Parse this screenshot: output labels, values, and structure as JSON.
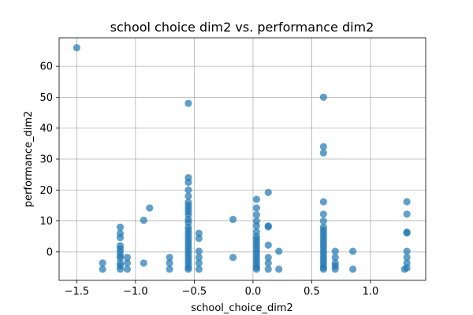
{
  "chart_data": {
    "type": "scatter",
    "title": "school choice dim2 vs. performance dim2",
    "xlabel": "school_choice_dim2",
    "ylabel": "performance_dim2",
    "xlim": [
      -1.65,
      1.47
    ],
    "ylim": [
      -9.2,
      69.2
    ],
    "x_ticks": [
      -1.5,
      -1.0,
      -0.5,
      0.0,
      0.5,
      1.0
    ],
    "x_tick_labels": [
      "−1.5",
      "−1.0",
      "−0.5",
      "0.0",
      "0.5",
      "1.0"
    ],
    "y_ticks": [
      0,
      10,
      20,
      30,
      40,
      50,
      60
    ],
    "y_tick_labels": [
      "0",
      "10",
      "20",
      "30",
      "40",
      "50",
      "60"
    ],
    "grid": true,
    "marker_color": "#1f77b4",
    "marker_alpha": 0.7,
    "points": [
      {
        "x": -1.5,
        "y": 66
      },
      {
        "x": -1.28,
        "y": -3.6
      },
      {
        "x": -1.28,
        "y": -5.6
      },
      {
        "x": -1.13,
        "y": 8
      },
      {
        "x": -1.13,
        "y": 6
      },
      {
        "x": -1.13,
        "y": 4.6
      },
      {
        "x": -1.13,
        "y": 2
      },
      {
        "x": -1.13,
        "y": 1
      },
      {
        "x": -1.13,
        "y": 0
      },
      {
        "x": -1.13,
        "y": -1.2
      },
      {
        "x": -1.13,
        "y": -2
      },
      {
        "x": -1.13,
        "y": -3.6
      },
      {
        "x": -1.13,
        "y": -4.6
      },
      {
        "x": -1.13,
        "y": -5.6
      },
      {
        "x": -1.07,
        "y": -1.8
      },
      {
        "x": -1.07,
        "y": -3.6
      },
      {
        "x": -1.07,
        "y": -5.6
      },
      {
        "x": -0.93,
        "y": 10.2
      },
      {
        "x": -0.93,
        "y": -3.6
      },
      {
        "x": -0.88,
        "y": 14.2
      },
      {
        "x": -0.71,
        "y": -1.8
      },
      {
        "x": -0.71,
        "y": -3.6
      },
      {
        "x": -0.71,
        "y": -5.6
      },
      {
        "x": -0.55,
        "y": 48
      },
      {
        "x": -0.55,
        "y": 24
      },
      {
        "x": -0.55,
        "y": 22.5
      },
      {
        "x": -0.55,
        "y": 20
      },
      {
        "x": -0.55,
        "y": 18
      },
      {
        "x": -0.55,
        "y": 16
      },
      {
        "x": -0.55,
        "y": 15
      },
      {
        "x": -0.55,
        "y": 14
      },
      {
        "x": -0.55,
        "y": 13
      },
      {
        "x": -0.55,
        "y": 12
      },
      {
        "x": -0.55,
        "y": 10.5
      },
      {
        "x": -0.55,
        "y": 9.5
      },
      {
        "x": -0.55,
        "y": 8
      },
      {
        "x": -0.55,
        "y": 7
      },
      {
        "x": -0.55,
        "y": 6
      },
      {
        "x": -0.55,
        "y": 5
      },
      {
        "x": -0.55,
        "y": 4
      },
      {
        "x": -0.55,
        "y": 3
      },
      {
        "x": -0.55,
        "y": 2
      },
      {
        "x": -0.55,
        "y": 1
      },
      {
        "x": -0.55,
        "y": 0
      },
      {
        "x": -0.55,
        "y": -1
      },
      {
        "x": -0.55,
        "y": -2
      },
      {
        "x": -0.55,
        "y": -3
      },
      {
        "x": -0.55,
        "y": -4
      },
      {
        "x": -0.55,
        "y": -5
      },
      {
        "x": -0.55,
        "y": -5.6
      },
      {
        "x": -0.46,
        "y": 6
      },
      {
        "x": -0.46,
        "y": 4.4
      },
      {
        "x": -0.46,
        "y": 0.2
      },
      {
        "x": -0.46,
        "y": -1.8
      },
      {
        "x": -0.46,
        "y": -3.6
      },
      {
        "x": -0.46,
        "y": -5.6
      },
      {
        "x": -0.17,
        "y": 10.5
      },
      {
        "x": -0.17,
        "y": -1.8
      },
      {
        "x": 0.03,
        "y": 17
      },
      {
        "x": 0.03,
        "y": 14.2
      },
      {
        "x": 0.03,
        "y": 12
      },
      {
        "x": 0.03,
        "y": 10
      },
      {
        "x": 0.03,
        "y": 8.4
      },
      {
        "x": 0.03,
        "y": 6.5
      },
      {
        "x": 0.03,
        "y": 5
      },
      {
        "x": 0.03,
        "y": 4
      },
      {
        "x": 0.03,
        "y": 3
      },
      {
        "x": 0.03,
        "y": 2
      },
      {
        "x": 0.03,
        "y": 1
      },
      {
        "x": 0.03,
        "y": 0
      },
      {
        "x": 0.03,
        "y": -1
      },
      {
        "x": 0.03,
        "y": -2
      },
      {
        "x": 0.03,
        "y": -3
      },
      {
        "x": 0.03,
        "y": -4
      },
      {
        "x": 0.03,
        "y": -5
      },
      {
        "x": 0.03,
        "y": -5.6
      },
      {
        "x": 0.13,
        "y": 19.2
      },
      {
        "x": 0.13,
        "y": 8.4
      },
      {
        "x": 0.13,
        "y": 8.1
      },
      {
        "x": 0.13,
        "y": 2.2
      },
      {
        "x": 0.13,
        "y": -1.8
      },
      {
        "x": 0.13,
        "y": -3.6
      },
      {
        "x": 0.13,
        "y": -5.6
      },
      {
        "x": 0.22,
        "y": 0.2
      },
      {
        "x": 0.22,
        "y": -5.6
      },
      {
        "x": 0.6,
        "y": 50
      },
      {
        "x": 0.6,
        "y": 34
      },
      {
        "x": 0.6,
        "y": 32
      },
      {
        "x": 0.6,
        "y": 16.2
      },
      {
        "x": 0.6,
        "y": 12.2
      },
      {
        "x": 0.6,
        "y": 10
      },
      {
        "x": 0.6,
        "y": 8
      },
      {
        "x": 0.6,
        "y": 7
      },
      {
        "x": 0.6,
        "y": 6
      },
      {
        "x": 0.6,
        "y": 5
      },
      {
        "x": 0.6,
        "y": 4
      },
      {
        "x": 0.6,
        "y": 3
      },
      {
        "x": 0.6,
        "y": 2
      },
      {
        "x": 0.6,
        "y": 1
      },
      {
        "x": 0.6,
        "y": 0
      },
      {
        "x": 0.6,
        "y": -1
      },
      {
        "x": 0.6,
        "y": -2
      },
      {
        "x": 0.6,
        "y": -3
      },
      {
        "x": 0.6,
        "y": -4
      },
      {
        "x": 0.6,
        "y": -5
      },
      {
        "x": 0.6,
        "y": -5.6
      },
      {
        "x": 0.7,
        "y": 0.2
      },
      {
        "x": 0.7,
        "y": -1.8
      },
      {
        "x": 0.7,
        "y": -3.6
      },
      {
        "x": 0.7,
        "y": -4.6
      },
      {
        "x": 0.7,
        "y": -5.6
      },
      {
        "x": 0.85,
        "y": 0.2
      },
      {
        "x": 0.85,
        "y": -5.6
      },
      {
        "x": 1.29,
        "y": -5.6
      },
      {
        "x": 1.31,
        "y": 16.2
      },
      {
        "x": 1.31,
        "y": 12.2
      },
      {
        "x": 1.31,
        "y": 6.4
      },
      {
        "x": 1.31,
        "y": 6.1
      },
      {
        "x": 1.31,
        "y": 0.2
      },
      {
        "x": 1.31,
        "y": -1.8
      },
      {
        "x": 1.31,
        "y": -3.6
      },
      {
        "x": 1.31,
        "y": -5.2
      }
    ]
  }
}
